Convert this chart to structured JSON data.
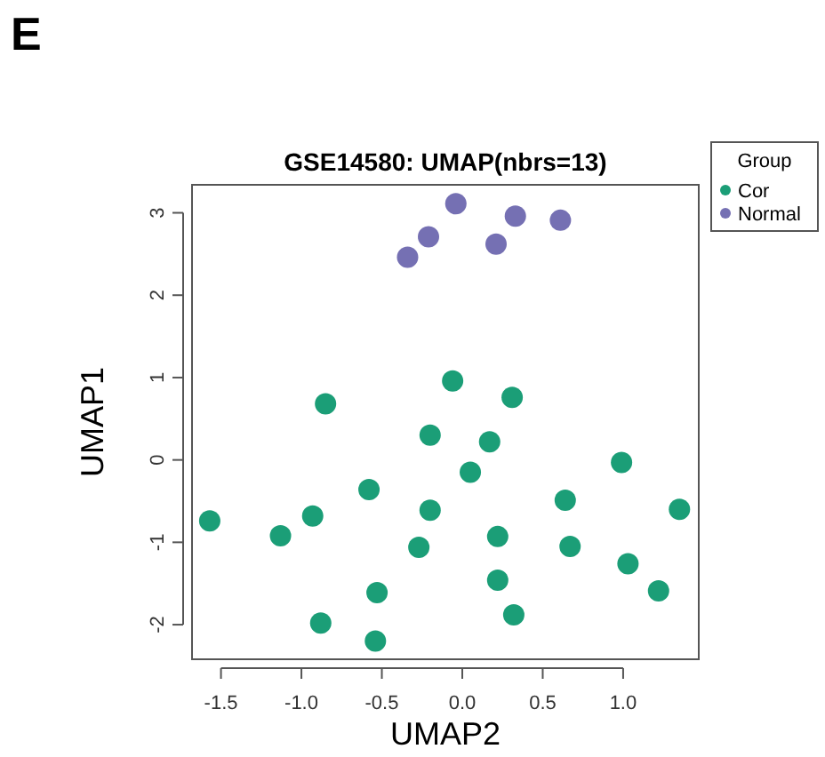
{
  "chart_data": {
    "type": "scatter",
    "title": "GSE14580: UMAP(nbrs=13)",
    "xlabel": "UMAP2",
    "ylabel": "UMAP1",
    "legend_title": "Group",
    "annotations": [
      "E"
    ],
    "xlim": [
      -1.68,
      1.47
    ],
    "ylim": [
      -2.42,
      3.34
    ],
    "xticks": [
      {
        "value": -1.5,
        "label": "-1.5"
      },
      {
        "value": -1,
        "label": "-1.0"
      },
      {
        "value": -0.5,
        "label": "-0.5"
      },
      {
        "value": 0,
        "label": "0.0"
      },
      {
        "value": 0.5,
        "label": "0.5"
      },
      {
        "value": 1,
        "label": "1.0"
      }
    ],
    "yticks": [
      -2,
      -1,
      0,
      1,
      2,
      3
    ],
    "grid": false,
    "legend": "top right",
    "marker": "circle",
    "series": [
      {
        "name": "Cor",
        "color": "#1b9e77",
        "x": [
          -0.06,
          0.31,
          -0.85,
          -0.2,
          0.17,
          0.99,
          0.05,
          -0.58,
          0.64,
          1.35,
          -1.57,
          -1.13,
          -0.93,
          -0.2,
          0.22,
          -0.27,
          0.67,
          1.03,
          0.22,
          -0.53,
          1.22,
          -0.88,
          0.32,
          -0.54
        ],
        "values": [
          0.96,
          0.76,
          0.68,
          0.3,
          0.22,
          -0.03,
          -0.15,
          -0.36,
          -0.49,
          -0.6,
          -0.74,
          -0.92,
          -0.68,
          -0.61,
          -0.93,
          -1.06,
          -1.05,
          -1.26,
          -1.46,
          -1.61,
          -1.59,
          -1.98,
          -1.88,
          -2.2
        ]
      },
      {
        "name": "Normal",
        "color": "#7570b3",
        "x": [
          -0.04,
          -0.21,
          -0.34,
          0.21,
          0.33,
          0.61
        ],
        "values": [
          3.11,
          2.71,
          2.46,
          2.62,
          2.96,
          2.91
        ]
      }
    ]
  }
}
